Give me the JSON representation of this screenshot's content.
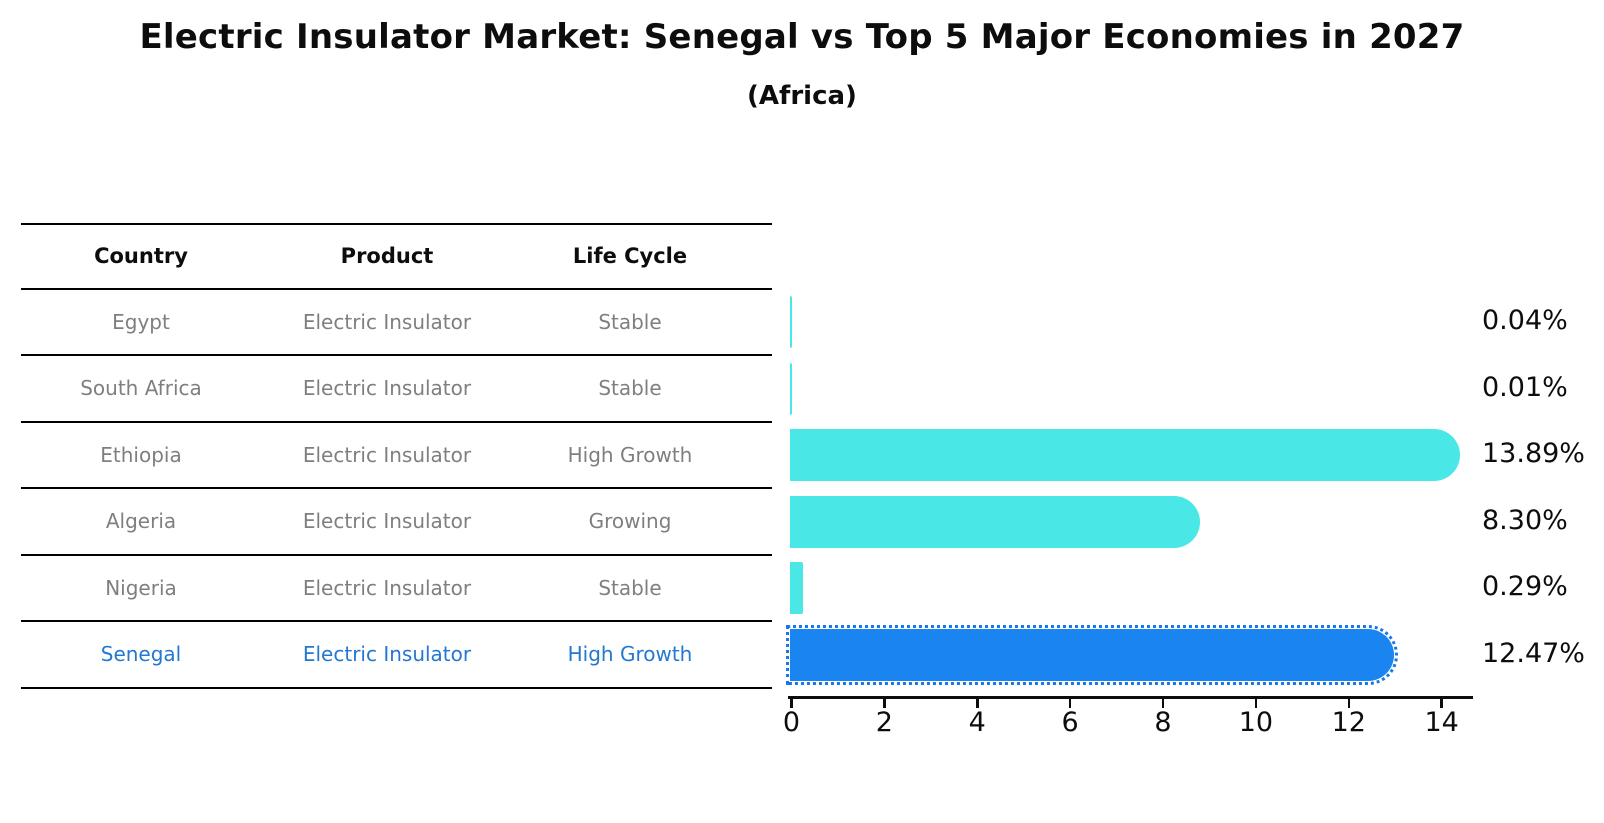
{
  "title": "Electric Insulator Market: Senegal vs Top 5 Major Economies in 2027",
  "subtitle": "(Africa)",
  "table": {
    "headers": [
      "Country",
      "Product",
      "Life Cycle"
    ],
    "rows": [
      {
        "country": "Egypt",
        "product": "Electric Insulator",
        "life_cycle": "Stable",
        "highlight": false
      },
      {
        "country": "South Africa",
        "product": "Electric Insulator",
        "life_cycle": "Stable",
        "highlight": false
      },
      {
        "country": "Ethiopia",
        "product": "Electric Insulator",
        "life_cycle": "High Growth",
        "highlight": false
      },
      {
        "country": "Algeria",
        "product": "Electric Insulator",
        "life_cycle": "Growing",
        "highlight": false
      },
      {
        "country": "Nigeria",
        "product": "Electric Insulator",
        "life_cycle": "Stable",
        "highlight": false
      },
      {
        "country": "Senegal",
        "product": "Electric Insulator",
        "life_cycle": "High Growth",
        "highlight": true
      }
    ]
  },
  "chart_data": {
    "type": "bar",
    "orientation": "horizontal",
    "title": "Electric Insulator Market: Senegal vs Top 5 Major Economies in 2027",
    "subtitle": "(Africa)",
    "categories": [
      "Egypt",
      "South Africa",
      "Ethiopia",
      "Algeria",
      "Nigeria",
      "Senegal"
    ],
    "values": [
      0.04,
      0.01,
      13.89,
      8.3,
      0.29,
      12.47
    ],
    "value_labels": [
      "0.04%",
      "0.01%",
      "13.89%",
      "8.30%",
      "0.29%",
      "12.47%"
    ],
    "x_ticks": [
      0,
      2,
      4,
      6,
      8,
      10,
      12,
      14
    ],
    "xlim": [
      0,
      14.7
    ],
    "grid": false,
    "legend": "none",
    "highlight_category": "Senegal",
    "colors": {
      "default_bar": "#4ae7e7",
      "highlight_bar": "#1a84f0",
      "highlight_border": "#1678ec",
      "highlight_text": "#2478d0",
      "row_text": "#7f7f7f",
      "axis_text": "#0d0d0d"
    }
  }
}
